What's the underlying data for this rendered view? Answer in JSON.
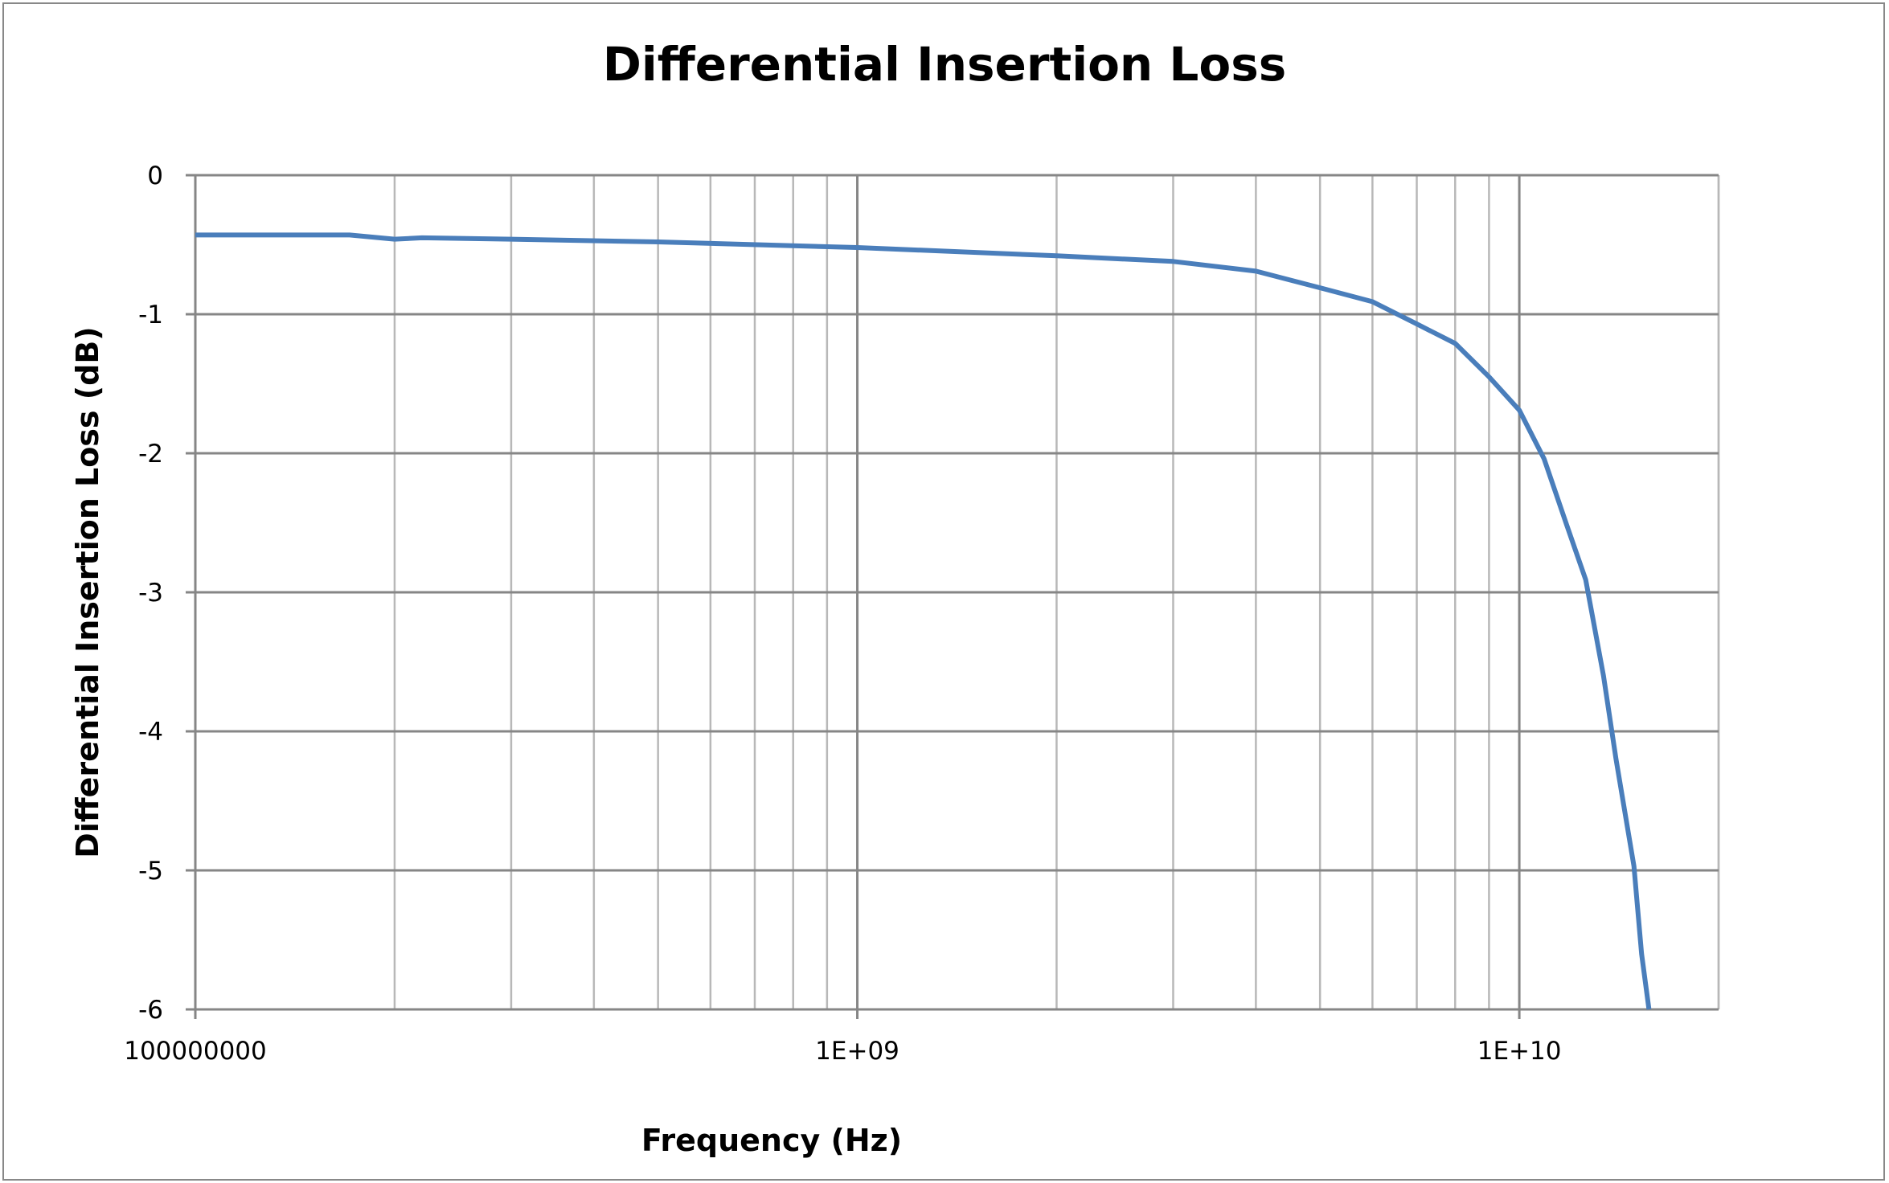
{
  "chart_data": {
    "type": "line",
    "title": "Differential Insertion Loss",
    "xlabel": "Frequency (Hz)",
    "ylabel": "Differential Insertion Loss (dB)",
    "xscale": "log",
    "xlim": [
      100000000,
      20000000000
    ],
    "ylim": [
      -6,
      0
    ],
    "xticks": [
      100000000,
      1000000000,
      10000000000
    ],
    "xtick_labels": [
      "100000000",
      "1E+09",
      "1E+10"
    ],
    "yticks": [
      0,
      -1,
      -2,
      -3,
      -4,
      -5,
      -6
    ],
    "ytick_labels": [
      "0",
      "-1",
      "-2",
      "-3",
      "-4",
      "-5",
      "-6"
    ],
    "grid": true,
    "legend": "none",
    "series": [
      {
        "color": "#4A7EBB",
        "x": [
          100000000.0,
          171000000.0,
          200000000.0,
          220000000.0,
          300000000.0,
          500000000.0,
          1000000000.0,
          2000000000.0,
          3000000000.0,
          4000000000.0,
          5000000000.0,
          6000000000.0,
          7000000000.0,
          8000000000.0,
          9000000000.0,
          10000000000.0,
          10900000000.0,
          11800000000.0,
          12600000000.0,
          13400000000.0,
          14000000000.0,
          14900000000.0,
          15300000000.0,
          15700000000.0
        ],
        "y": [
          -0.43,
          -0.43,
          -0.46,
          -0.45,
          -0.46,
          -0.48,
          -0.52,
          -0.58,
          -0.62,
          -0.69,
          -0.81,
          -0.91,
          -1.07,
          -1.21,
          -1.45,
          -1.69,
          -2.04,
          -2.52,
          -2.91,
          -3.6,
          -4.2,
          -4.97,
          -5.6,
          -6.0
        ]
      }
    ]
  }
}
